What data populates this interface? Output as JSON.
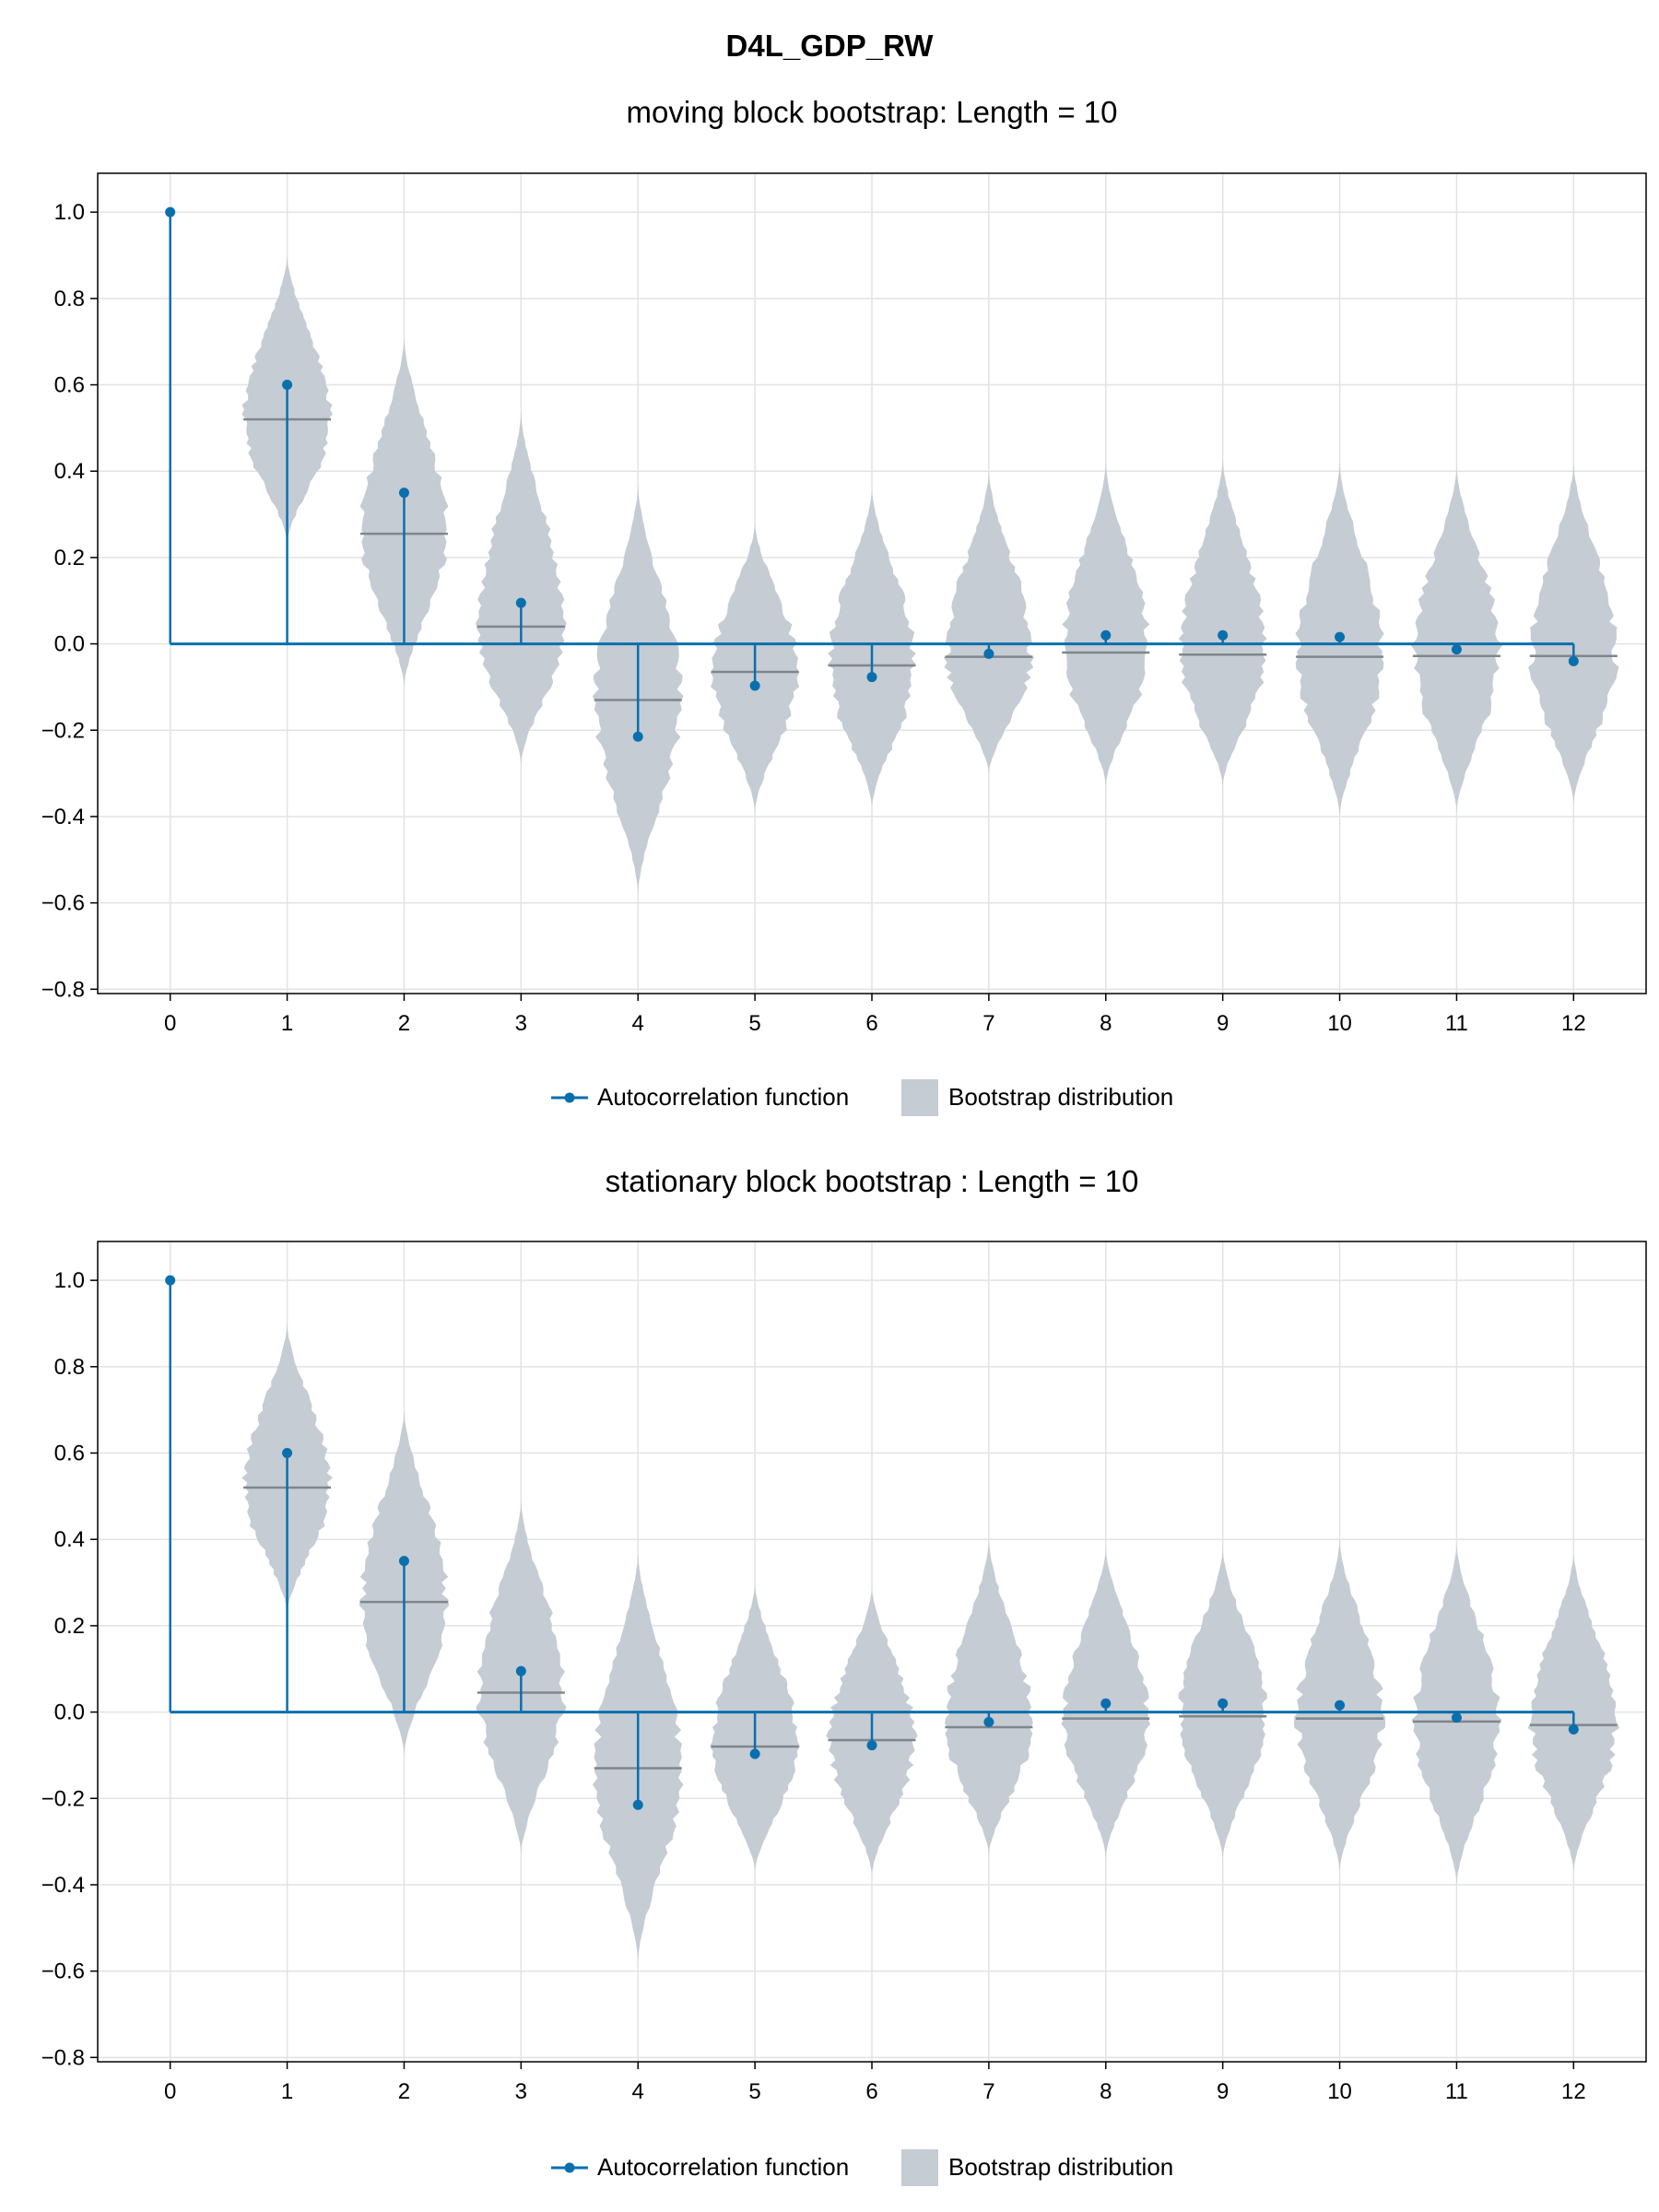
{
  "figure_title": "D4L_GDP_RW",
  "colors": {
    "acf": "#0a6fad",
    "violin": "#c5ccd3",
    "median": "#7f868e",
    "grid": "#e3e3e3",
    "frame": "#000000"
  },
  "chart_data": [
    {
      "type": "violin",
      "title": "moving block bootstrap: Length = 10",
      "xlabel": "",
      "ylabel": "",
      "xlim": [
        -0.62,
        12.62
      ],
      "ylim": [
        -0.81,
        1.09
      ],
      "x_ticks": [
        0,
        1,
        2,
        3,
        4,
        5,
        6,
        7,
        8,
        9,
        10,
        11,
        12
      ],
      "y_ticks": [
        1.0,
        0.8,
        0.6,
        0.4,
        0.2,
        0.0,
        -0.2,
        -0.4,
        -0.6,
        -0.8
      ],
      "y_tick_labels": [
        "1.0",
        "0.8",
        "0.6",
        "0.4",
        "0.2",
        "0.0",
        "−0.2",
        "−0.4",
        "−0.6",
        "−0.8"
      ],
      "grid": true,
      "legend_position": "bottom-center",
      "legend": [
        "Autocorrelation function",
        "Bootstrap distribution"
      ],
      "series": [
        {
          "name": "Autocorrelation function",
          "type": "stem",
          "lags": [
            0,
            1,
            2,
            3,
            4,
            5,
            6,
            7,
            8,
            9,
            10,
            11,
            12
          ],
          "values": [
            1.0,
            0.6,
            0.35,
            0.095,
            -0.215,
            -0.097,
            -0.077,
            -0.023,
            0.02,
            0.02,
            0.016,
            -0.013,
            -0.04
          ]
        },
        {
          "name": "Bootstrap distribution",
          "type": "violin",
          "lags": [
            1,
            2,
            3,
            4,
            5,
            6,
            7,
            8,
            9,
            10,
            11,
            12
          ],
          "min": [
            0.23,
            -0.1,
            -0.28,
            -0.58,
            -0.39,
            -0.38,
            -0.3,
            -0.33,
            -0.33,
            -0.4,
            -0.39,
            -0.37
          ],
          "max": [
            0.9,
            0.71,
            0.54,
            0.37,
            0.28,
            0.36,
            0.4,
            0.42,
            0.43,
            0.42,
            0.41,
            0.42
          ],
          "median": [
            0.52,
            0.255,
            0.04,
            -0.13,
            -0.065,
            -0.05,
            -0.03,
            -0.02,
            -0.025,
            -0.03,
            -0.028,
            -0.028
          ]
        }
      ]
    },
    {
      "type": "violin",
      "title": "stationary block bootstrap : Length = 10",
      "xlabel": "",
      "ylabel": "",
      "xlim": [
        -0.62,
        12.62
      ],
      "ylim": [
        -0.81,
        1.09
      ],
      "x_ticks": [
        0,
        1,
        2,
        3,
        4,
        5,
        6,
        7,
        8,
        9,
        10,
        11,
        12
      ],
      "y_ticks": [
        1.0,
        0.8,
        0.6,
        0.4,
        0.2,
        0.0,
        -0.2,
        -0.4,
        -0.6,
        -0.8
      ],
      "y_tick_labels": [
        "1.0",
        "0.8",
        "0.6",
        "0.4",
        "0.2",
        "0.0",
        "−0.2",
        "−0.4",
        "−0.6",
        "−0.8"
      ],
      "grid": true,
      "legend_position": "bottom-center",
      "legend": [
        "Autocorrelation function",
        "Bootstrap distribution"
      ],
      "series": [
        {
          "name": "Autocorrelation function",
          "type": "stem",
          "lags": [
            0,
            1,
            2,
            3,
            4,
            5,
            6,
            7,
            8,
            9,
            10,
            11,
            12
          ],
          "values": [
            1.0,
            0.6,
            0.35,
            0.095,
            -0.215,
            -0.097,
            -0.077,
            -0.023,
            0.02,
            0.02,
            0.016,
            -0.013,
            -0.04
          ]
        },
        {
          "name": "Bootstrap distribution",
          "type": "violin",
          "lags": [
            1,
            2,
            3,
            4,
            5,
            6,
            7,
            8,
            9,
            10,
            11,
            12
          ],
          "min": [
            0.23,
            -0.1,
            -0.33,
            -0.58,
            -0.37,
            -0.38,
            -0.33,
            -0.34,
            -0.34,
            -0.37,
            -0.4,
            -0.37
          ],
          "max": [
            0.9,
            0.7,
            0.49,
            0.37,
            0.3,
            0.29,
            0.4,
            0.38,
            0.38,
            0.4,
            0.39,
            0.37
          ],
          "median": [
            0.52,
            0.255,
            0.045,
            -0.13,
            -0.08,
            -0.065,
            -0.035,
            -0.015,
            -0.01,
            -0.015,
            -0.022,
            -0.03
          ]
        }
      ]
    }
  ]
}
